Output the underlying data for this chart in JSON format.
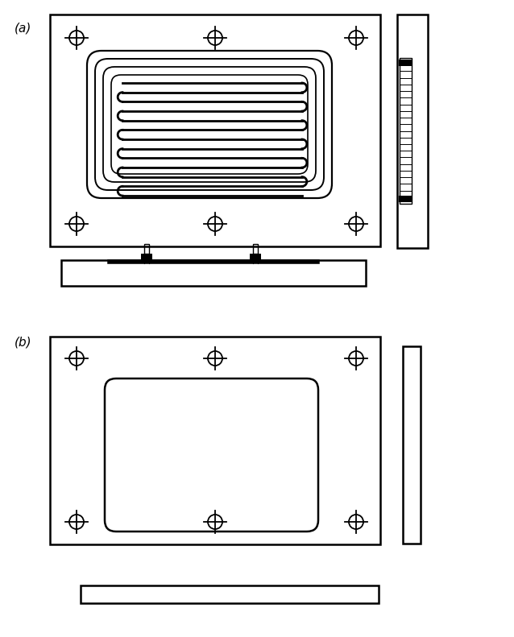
{
  "bg_color": "#ffffff",
  "line_color": "#000000",
  "fig_width": 6.38,
  "fig_height": 7.91,
  "label_a": "(a)",
  "label_b": "(b)"
}
